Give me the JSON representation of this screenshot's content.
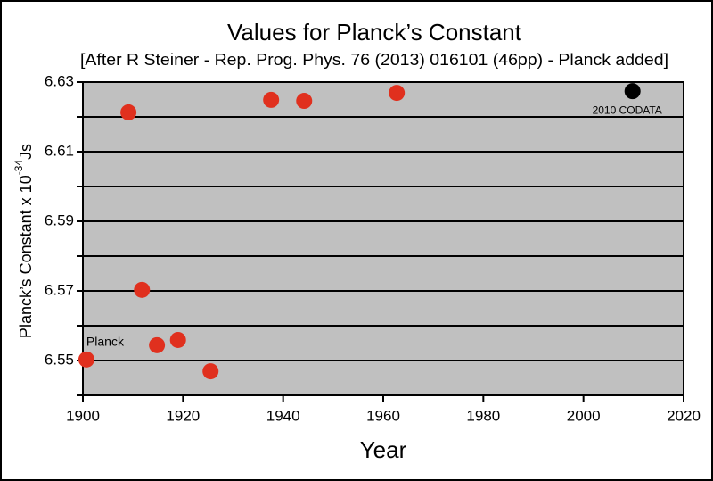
{
  "chart_data": {
    "type": "scatter",
    "title": "Values for Planck’s Constant",
    "subtitle": "[After R Steiner - Rep. Prog. Phys. 76 (2013) 016101 (46pp) - Planck added]",
    "xlabel": "Year",
    "ylabel": {
      "text": "Planck’s Constant x 10",
      "exponent": "-34",
      "unit": "Js"
    },
    "xlim": [
      1900,
      2020
    ],
    "xticks": [
      1900,
      1920,
      1940,
      1960,
      1980,
      2000,
      2020
    ],
    "ylim": [
      6.54,
      6.63
    ],
    "yticks": [
      6.55,
      6.57,
      6.59,
      6.61,
      6.63
    ],
    "minor_yticks": [
      6.54,
      6.56,
      6.58,
      6.6,
      6.62
    ],
    "grid": true,
    "series": [
      {
        "color": "#e0301e",
        "x": [
          1900.7,
          1909.1,
          1911.8,
          1914.8,
          1919.0,
          1925.5,
          1937.6,
          1944.2,
          1962.7
        ],
        "values": [
          6.5503,
          6.6213,
          6.5703,
          6.5544,
          6.5559,
          6.5469,
          6.6249,
          6.6246,
          6.6269
        ]
      },
      {
        "color": "#000000",
        "x": [
          2009.8
        ],
        "values": [
          6.6274
        ]
      }
    ],
    "annotations": [
      {
        "text": "Planck",
        "x": 1900.7,
        "y": 6.5503
      },
      {
        "text": "2010 CODATA",
        "x": 2009.8,
        "y": 6.6274
      }
    ]
  }
}
